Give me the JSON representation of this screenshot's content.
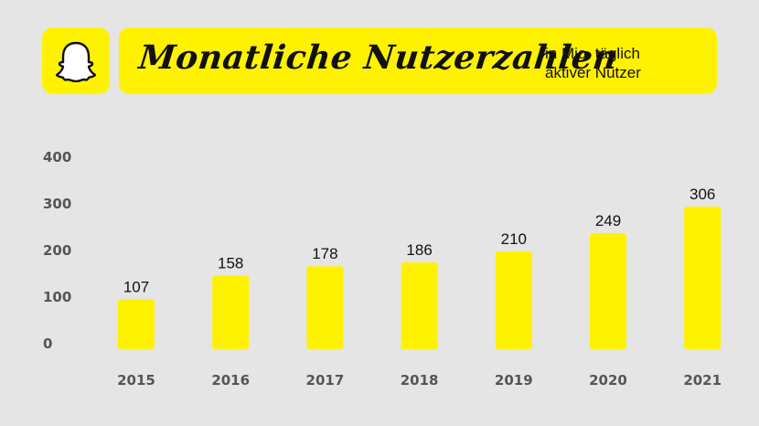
{
  "colors": {
    "accent": "#fff200",
    "background": "#e5e5e5",
    "text": "#111111",
    "axis_text": "#555555"
  },
  "header": {
    "logo_icon": "ghost-icon",
    "title": "Monatliche Nutzerzahlen",
    "subtitle_line1": "in Mio. täglich",
    "subtitle_line2": "aktiver Nutzer"
  },
  "chart_data": {
    "type": "bar",
    "title": "Monatliche Nutzerzahlen",
    "subtitle": "in Mio. täglich aktiver Nutzer",
    "categories": [
      "2015",
      "2016",
      "2017",
      "2018",
      "2019",
      "2020",
      "2021"
    ],
    "values": [
      107,
      158,
      178,
      186,
      210,
      249,
      306
    ],
    "yticks": [
      0,
      100,
      200,
      300,
      400
    ],
    "ylim": [
      0,
      400
    ],
    "grid": false,
    "legend": "none",
    "data_labels": true,
    "bar_color": "#fff200"
  }
}
